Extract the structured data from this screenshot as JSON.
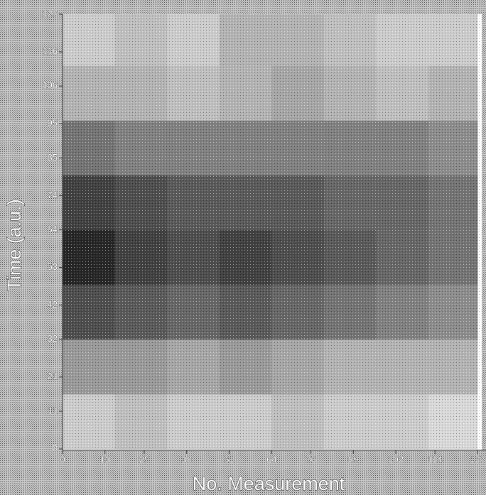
{
  "chart_data": {
    "type": "heatmap",
    "xlabel": "No. Measurement",
    "ylabel": "Time (a.u.)",
    "xlim": [
      0,
      127
    ],
    "ylim": [
      0,
      127
    ],
    "xticks": [
      0,
      13,
      25,
      38,
      51,
      64,
      76,
      89,
      102,
      114,
      127
    ],
    "yticks": [
      0,
      11,
      21,
      32,
      42,
      53,
      64,
      74,
      85,
      95,
      106,
      116,
      127
    ],
    "xbins": [
      0,
      16,
      32,
      48,
      64,
      80,
      96,
      112,
      127
    ],
    "ybins": [
      0,
      16,
      32,
      48,
      64,
      80,
      96,
      112,
      127
    ],
    "z": [
      [
        0.2,
        0.25,
        0.2,
        0.2,
        0.25,
        0.2,
        0.2,
        0.15
      ],
      [
        0.4,
        0.4,
        0.35,
        0.4,
        0.35,
        0.3,
        0.3,
        0.3
      ],
      [
        0.7,
        0.65,
        0.6,
        0.65,
        0.6,
        0.55,
        0.5,
        0.45
      ],
      [
        0.85,
        0.75,
        0.7,
        0.75,
        0.7,
        0.65,
        0.6,
        0.55
      ],
      [
        0.75,
        0.7,
        0.65,
        0.65,
        0.65,
        0.6,
        0.6,
        0.55
      ],
      [
        0.55,
        0.5,
        0.5,
        0.5,
        0.5,
        0.5,
        0.5,
        0.45
      ],
      [
        0.3,
        0.3,
        0.25,
        0.3,
        0.35,
        0.3,
        0.25,
        0.3
      ],
      [
        0.2,
        0.25,
        0.2,
        0.3,
        0.3,
        0.25,
        0.2,
        0.2
      ]
    ]
  }
}
